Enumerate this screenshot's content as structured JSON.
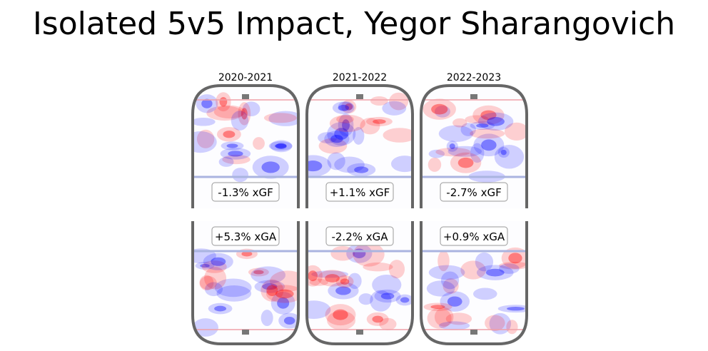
{
  "chart_data": {
    "type": "heatmap",
    "title": "Isolated 5v5 Impact, Yegor Sharangovich",
    "colors": {
      "positive": "#ff0000",
      "negative": "#0000ff",
      "rink_outline": "#666666",
      "blue_line": "#aab4e0",
      "goal_line": "#f0a0a8"
    },
    "panels": [
      {
        "season": "2020-2021",
        "xgf_label": "-1.3% xGF",
        "xgf": -1.3,
        "xga_label": "+5.3% xGA",
        "xga": 5.3
      },
      {
        "season": "2021-2022",
        "xgf_label": "+1.1% xGF",
        "xgf": 1.1,
        "xga_label": "-2.2% xGA",
        "xga": -2.2
      },
      {
        "season": "2022-2023",
        "xgf_label": "-2.7% xGF",
        "xgf": -2.7,
        "xga_label": "+0.9% xGA",
        "xga": 0.9
      }
    ]
  }
}
